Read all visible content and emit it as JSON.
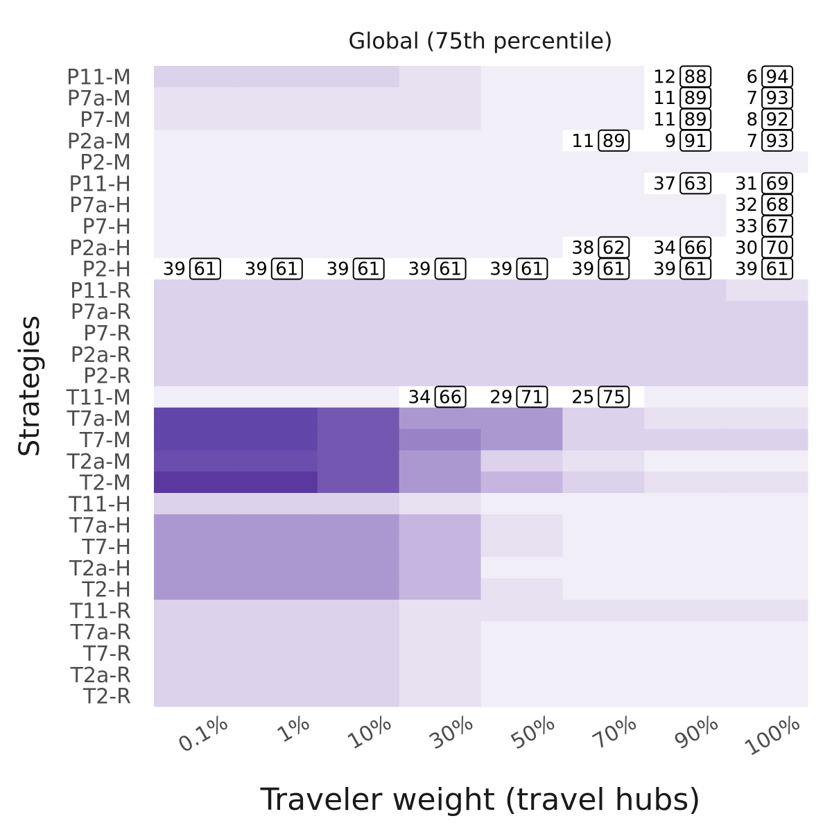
{
  "chart_data": {
    "type": "heatmap",
    "title": "Global (75th percentile)",
    "xlabel": "Traveler weight (travel hubs)",
    "ylabel": "Strategies",
    "x": [
      "0.1%",
      "1%",
      "10%",
      "30%",
      "50%",
      "70%",
      "90%",
      "100%"
    ],
    "y": [
      "P11-M",
      "P7a-M",
      "P7-M",
      "P2a-M",
      "P2-M",
      "P11-H",
      "P7a-H",
      "P7-H",
      "P2a-H",
      "P2-H",
      "P11-R",
      "P7a-R",
      "P7-R",
      "P2a-R",
      "P2-R",
      "T11-M",
      "T7a-M",
      "T7-M",
      "T2a-M",
      "T2-M",
      "T11-H",
      "T7a-H",
      "T7-H",
      "T2a-H",
      "T2-H",
      "T11-R",
      "T7a-R",
      "T7-R",
      "T2a-R",
      "T2-R"
    ],
    "colors": {
      "0": "#ffffff",
      "1": "#f1eef8",
      "2": "#e7e1f1",
      "3": "#dcd2eb",
      "4": "#c5b5e0",
      "5": "#ac98d1",
      "6": "#9a82c6",
      "7": "#7457b1",
      "8": "#6a4dac",
      "9": "#6245a8",
      "10": "#5a389f"
    },
    "levels": [
      [
        3,
        3,
        3,
        2,
        1,
        1,
        0,
        0
      ],
      [
        2,
        2,
        2,
        2,
        1,
        1,
        0,
        0
      ],
      [
        2,
        2,
        2,
        2,
        1,
        1,
        0,
        0
      ],
      [
        1,
        1,
        1,
        1,
        1,
        0,
        0,
        0
      ],
      [
        1,
        1,
        1,
        1,
        1,
        1,
        1,
        1
      ],
      [
        1,
        1,
        1,
        1,
        1,
        1,
        0,
        0
      ],
      [
        1,
        1,
        1,
        1,
        1,
        1,
        1,
        0
      ],
      [
        1,
        1,
        1,
        1,
        1,
        1,
        1,
        0
      ],
      [
        1,
        1,
        1,
        1,
        1,
        0,
        0,
        0
      ],
      [
        0,
        0,
        0,
        0,
        0,
        0,
        0,
        0
      ],
      [
        3,
        3,
        3,
        3,
        3,
        3,
        3,
        2
      ],
      [
        3,
        3,
        3,
        3,
        3,
        3,
        3,
        3
      ],
      [
        3,
        3,
        3,
        3,
        3,
        3,
        3,
        3
      ],
      [
        3,
        3,
        3,
        3,
        3,
        3,
        3,
        3
      ],
      [
        3,
        3,
        3,
        3,
        3,
        3,
        3,
        3
      ],
      [
        1,
        1,
        1,
        0,
        0,
        0,
        1,
        1
      ],
      [
        9,
        9,
        7,
        5,
        5,
        3,
        2,
        2
      ],
      [
        9,
        9,
        7,
        6,
        5,
        3,
        3,
        3
      ],
      [
        8,
        8,
        7,
        5,
        3,
        2,
        1,
        1
      ],
      [
        10,
        10,
        7,
        5,
        4,
        3,
        2,
        2
      ],
      [
        3,
        3,
        3,
        2,
        1,
        1,
        1,
        1
      ],
      [
        5,
        5,
        5,
        4,
        2,
        1,
        1,
        1
      ],
      [
        5,
        5,
        5,
        4,
        2,
        1,
        1,
        1
      ],
      [
        5,
        5,
        5,
        4,
        1,
        1,
        1,
        1
      ],
      [
        5,
        5,
        5,
        4,
        2,
        1,
        1,
        1
      ],
      [
        3,
        3,
        3,
        2,
        2,
        2,
        2,
        2
      ],
      [
        3,
        3,
        3,
        2,
        1,
        1,
        1,
        1
      ],
      [
        3,
        3,
        3,
        2,
        1,
        1,
        1,
        1
      ],
      [
        3,
        3,
        3,
        2,
        1,
        1,
        1,
        1
      ],
      [
        3,
        3,
        3,
        2,
        1,
        1,
        1,
        1
      ]
    ],
    "labels": [
      {
        "row": "P11-M",
        "col": "90%",
        "a": "12",
        "b": "88"
      },
      {
        "row": "P11-M",
        "col": "100%",
        "a": "6",
        "b": "94"
      },
      {
        "row": "P7a-M",
        "col": "90%",
        "a": "11",
        "b": "89"
      },
      {
        "row": "P7a-M",
        "col": "100%",
        "a": "7",
        "b": "93"
      },
      {
        "row": "P7-M",
        "col": "90%",
        "a": "11",
        "b": "89"
      },
      {
        "row": "P7-M",
        "col": "100%",
        "a": "8",
        "b": "92"
      },
      {
        "row": "P2a-M",
        "col": "70%",
        "a": "11",
        "b": "89"
      },
      {
        "row": "P2a-M",
        "col": "90%",
        "a": "9",
        "b": "91"
      },
      {
        "row": "P2a-M",
        "col": "100%",
        "a": "7",
        "b": "93"
      },
      {
        "row": "P11-H",
        "col": "90%",
        "a": "37",
        "b": "63"
      },
      {
        "row": "P11-H",
        "col": "100%",
        "a": "31",
        "b": "69"
      },
      {
        "row": "P7a-H",
        "col": "100%",
        "a": "32",
        "b": "68"
      },
      {
        "row": "P7-H",
        "col": "100%",
        "a": "33",
        "b": "67"
      },
      {
        "row": "P2a-H",
        "col": "70%",
        "a": "38",
        "b": "62"
      },
      {
        "row": "P2a-H",
        "col": "90%",
        "a": "34",
        "b": "66"
      },
      {
        "row": "P2a-H",
        "col": "100%",
        "a": "30",
        "b": "70"
      },
      {
        "row": "P2-H",
        "col": "0.1%",
        "a": "39",
        "b": "61"
      },
      {
        "row": "P2-H",
        "col": "1%",
        "a": "39",
        "b": "61"
      },
      {
        "row": "P2-H",
        "col": "10%",
        "a": "39",
        "b": "61"
      },
      {
        "row": "P2-H",
        "col": "30%",
        "a": "39",
        "b": "61"
      },
      {
        "row": "P2-H",
        "col": "50%",
        "a": "39",
        "b": "61"
      },
      {
        "row": "P2-H",
        "col": "70%",
        "a": "39",
        "b": "61"
      },
      {
        "row": "P2-H",
        "col": "90%",
        "a": "39",
        "b": "61"
      },
      {
        "row": "P2-H",
        "col": "100%",
        "a": "39",
        "b": "61"
      },
      {
        "row": "T11-M",
        "col": "30%",
        "a": "34",
        "b": "66"
      },
      {
        "row": "T11-M",
        "col": "50%",
        "a": "29",
        "b": "71"
      },
      {
        "row": "T11-M",
        "col": "70%",
        "a": "25",
        "b": "75"
      }
    ],
    "legend": "none",
    "grid": false
  }
}
